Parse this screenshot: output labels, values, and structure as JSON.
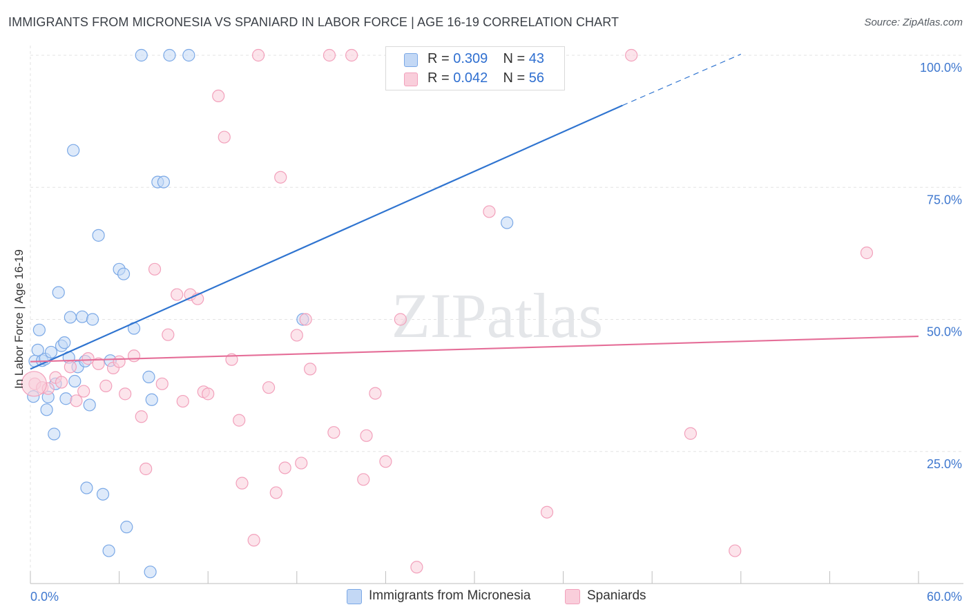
{
  "chart_data": {
    "type": "scatter",
    "title": "IMMIGRANTS FROM MICRONESIA VS SPANIARD IN LABOR FORCE | AGE 16-19 CORRELATION CHART",
    "source": "Source: ZipAtlas.com",
    "ylabel": "In Labor Force | Age 16-19",
    "xlabel": "",
    "xlim": [
      0,
      60
    ],
    "ylim": [
      0,
      105
    ],
    "x_tick_labels": {
      "min": "0.0%",
      "max": "60.0%"
    },
    "y_ticks": [
      {
        "value": 25,
        "label": "25.0%"
      },
      {
        "value": 50,
        "label": "50.0%"
      },
      {
        "value": 75,
        "label": "75.0%"
      },
      {
        "value": 100,
        "label": "100.0%"
      }
    ],
    "grid": true,
    "watermark": "ZIPatlas",
    "legend": [
      {
        "r_label": "R = ",
        "r_value": "0.309",
        "n_label": "N = ",
        "n_value": "43"
      },
      {
        "r_label": "R = ",
        "r_value": "0.042",
        "n_label": "N = ",
        "n_value": "56"
      }
    ],
    "series": [
      {
        "name": "Immigrants from Micronesia",
        "color": "#7aa8e6",
        "fill": "#c3d8f5",
        "line_color": "#2f74d0",
        "trend": {
          "x0": 0,
          "y0": 40.6,
          "x1": 40,
          "y1": 90.5,
          "dash_to_x": 48,
          "dash_to_y": 100.2
        },
        "points": [
          [
            0.2,
            35.4
          ],
          [
            0.3,
            42.1
          ],
          [
            0.5,
            44.2
          ],
          [
            0.6,
            48.0
          ],
          [
            0.8,
            42.2
          ],
          [
            1.0,
            42.5
          ],
          [
            1.1,
            32.9
          ],
          [
            1.2,
            35.3
          ],
          [
            1.4,
            43.8
          ],
          [
            1.6,
            28.3
          ],
          [
            1.7,
            37.8
          ],
          [
            1.9,
            55.1
          ],
          [
            2.1,
            45.0
          ],
          [
            2.3,
            45.6
          ],
          [
            2.4,
            35.0
          ],
          [
            2.6,
            42.8
          ],
          [
            2.7,
            50.4
          ],
          [
            2.9,
            82.0
          ],
          [
            3.0,
            38.3
          ],
          [
            3.2,
            41.0
          ],
          [
            3.5,
            50.5
          ],
          [
            3.7,
            42.1
          ],
          [
            3.8,
            18.1
          ],
          [
            4.0,
            33.8
          ],
          [
            4.2,
            50.0
          ],
          [
            4.6,
            65.9
          ],
          [
            4.9,
            16.9
          ],
          [
            5.3,
            6.2
          ],
          [
            5.4,
            42.2
          ],
          [
            6.0,
            59.5
          ],
          [
            6.3,
            58.6
          ],
          [
            6.5,
            10.7
          ],
          [
            7.0,
            48.3
          ],
          [
            7.5,
            100.0
          ],
          [
            8.0,
            39.1
          ],
          [
            8.1,
            2.2
          ],
          [
            8.2,
            34.8
          ],
          [
            8.6,
            76.0
          ],
          [
            9.0,
            76.0
          ],
          [
            9.4,
            100.0
          ],
          [
            10.7,
            100.0
          ],
          [
            18.4,
            50.0
          ],
          [
            32.2,
            68.3
          ]
        ]
      },
      {
        "name": "Spaniards",
        "color": "#f2a0bb",
        "fill": "#f9cedb",
        "line_color": "#e56e98",
        "trend": {
          "x0": 0,
          "y0": 42.0,
          "x1": 60,
          "y1": 46.8
        },
        "points": [
          [
            0.3,
            37.8
          ],
          [
            0.8,
            37.1
          ],
          [
            1.2,
            36.9
          ],
          [
            1.7,
            39.0
          ],
          [
            2.1,
            38.1
          ],
          [
            2.7,
            41.0
          ],
          [
            3.1,
            34.6
          ],
          [
            3.6,
            36.4
          ],
          [
            3.9,
            42.6
          ],
          [
            4.6,
            41.6
          ],
          [
            5.1,
            37.4
          ],
          [
            5.6,
            40.8
          ],
          [
            6.0,
            42.0
          ],
          [
            6.4,
            35.9
          ],
          [
            7.0,
            43.1
          ],
          [
            7.5,
            31.6
          ],
          [
            7.8,
            21.7
          ],
          [
            8.4,
            59.5
          ],
          [
            8.9,
            37.8
          ],
          [
            9.3,
            47.1
          ],
          [
            9.9,
            54.7
          ],
          [
            10.3,
            34.5
          ],
          [
            10.8,
            54.7
          ],
          [
            11.3,
            53.9
          ],
          [
            11.7,
            36.3
          ],
          [
            12.0,
            35.9
          ],
          [
            12.7,
            92.3
          ],
          [
            13.1,
            84.5
          ],
          [
            13.6,
            42.4
          ],
          [
            14.1,
            30.9
          ],
          [
            14.3,
            19.0
          ],
          [
            15.1,
            8.2
          ],
          [
            15.4,
            100.0
          ],
          [
            16.1,
            37.1
          ],
          [
            16.6,
            17.2
          ],
          [
            16.9,
            76.9
          ],
          [
            17.2,
            21.9
          ],
          [
            18.0,
            47.0
          ],
          [
            18.3,
            22.8
          ],
          [
            18.6,
            50.0
          ],
          [
            18.9,
            40.6
          ],
          [
            20.2,
            100.0
          ],
          [
            20.5,
            28.6
          ],
          [
            21.7,
            100.0
          ],
          [
            22.5,
            19.7
          ],
          [
            22.7,
            28.0
          ],
          [
            23.3,
            36.0
          ],
          [
            24.0,
            23.1
          ],
          [
            25.0,
            50.0
          ],
          [
            26.1,
            3.1
          ],
          [
            31.0,
            70.4
          ],
          [
            34.9,
            13.5
          ],
          [
            40.6,
            100.0
          ],
          [
            44.6,
            28.4
          ],
          [
            47.6,
            6.2
          ],
          [
            56.5,
            62.6
          ]
        ]
      }
    ]
  }
}
